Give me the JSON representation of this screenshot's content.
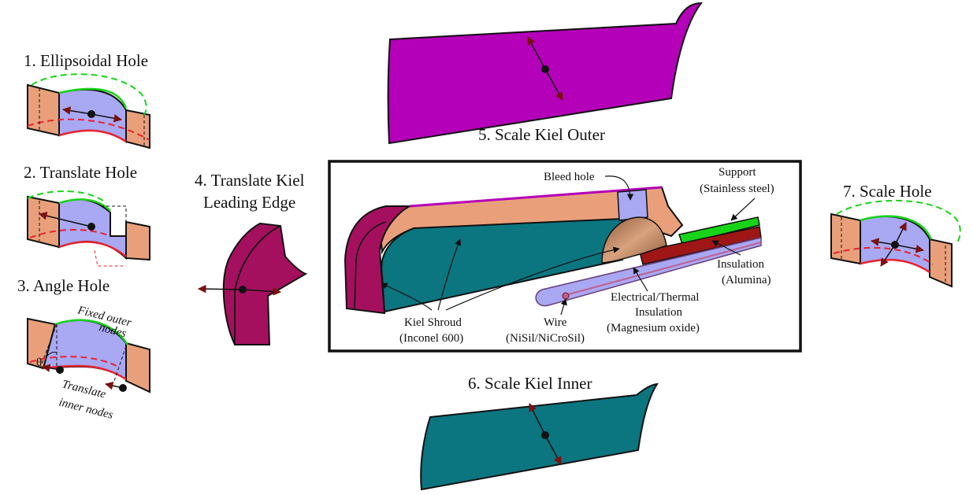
{
  "panels": {
    "ellipsoidal_hole": "1. Ellipsoidal Hole",
    "translate_hole": "2. Translate Hole",
    "angle_hole": "3. Angle Hole",
    "translate_kiel_line1": "4. Translate Kiel",
    "translate_kiel_line2": "Leading Edge",
    "scale_kiel_outer": "5. Scale Kiel Outer",
    "scale_kiel_inner": "6. Scale Kiel Inner",
    "scale_hole": "7. Scale Hole"
  },
  "angle_hole_notes": {
    "fixed_line1": "Fixed outer",
    "fixed_line2": "nodes",
    "translate_line1": "Translate",
    "translate_line2": "inner nodes",
    "theta": "θ"
  },
  "probe_labels": {
    "bleed_hole": "Bleed hole",
    "support_line1": "Support",
    "support_line2": "(Stainless steel)",
    "insulation_line1": "Insulation",
    "insulation_line2": "(Alumina)",
    "emi_line1": "Electrical/Thermal",
    "emi_line2": "Insulation",
    "emi_line3": "(Magnesium oxide)",
    "wire_line1": "Wire",
    "wire_line2": "(NiSil/NiCroSil)",
    "shroud_line1": "Kiel Shroud",
    "shroud_line2": "(Inconel 600)"
  },
  "colors": {
    "tan": "#E9A07A",
    "lavender": "#A9A8F2",
    "magenta": "#B400B8",
    "maroon": "#A5105E",
    "teal": "#0B7680",
    "green": "#18D418",
    "red": "#E8232F",
    "darkred": "#9E1616",
    "copper": "#C98A66"
  }
}
